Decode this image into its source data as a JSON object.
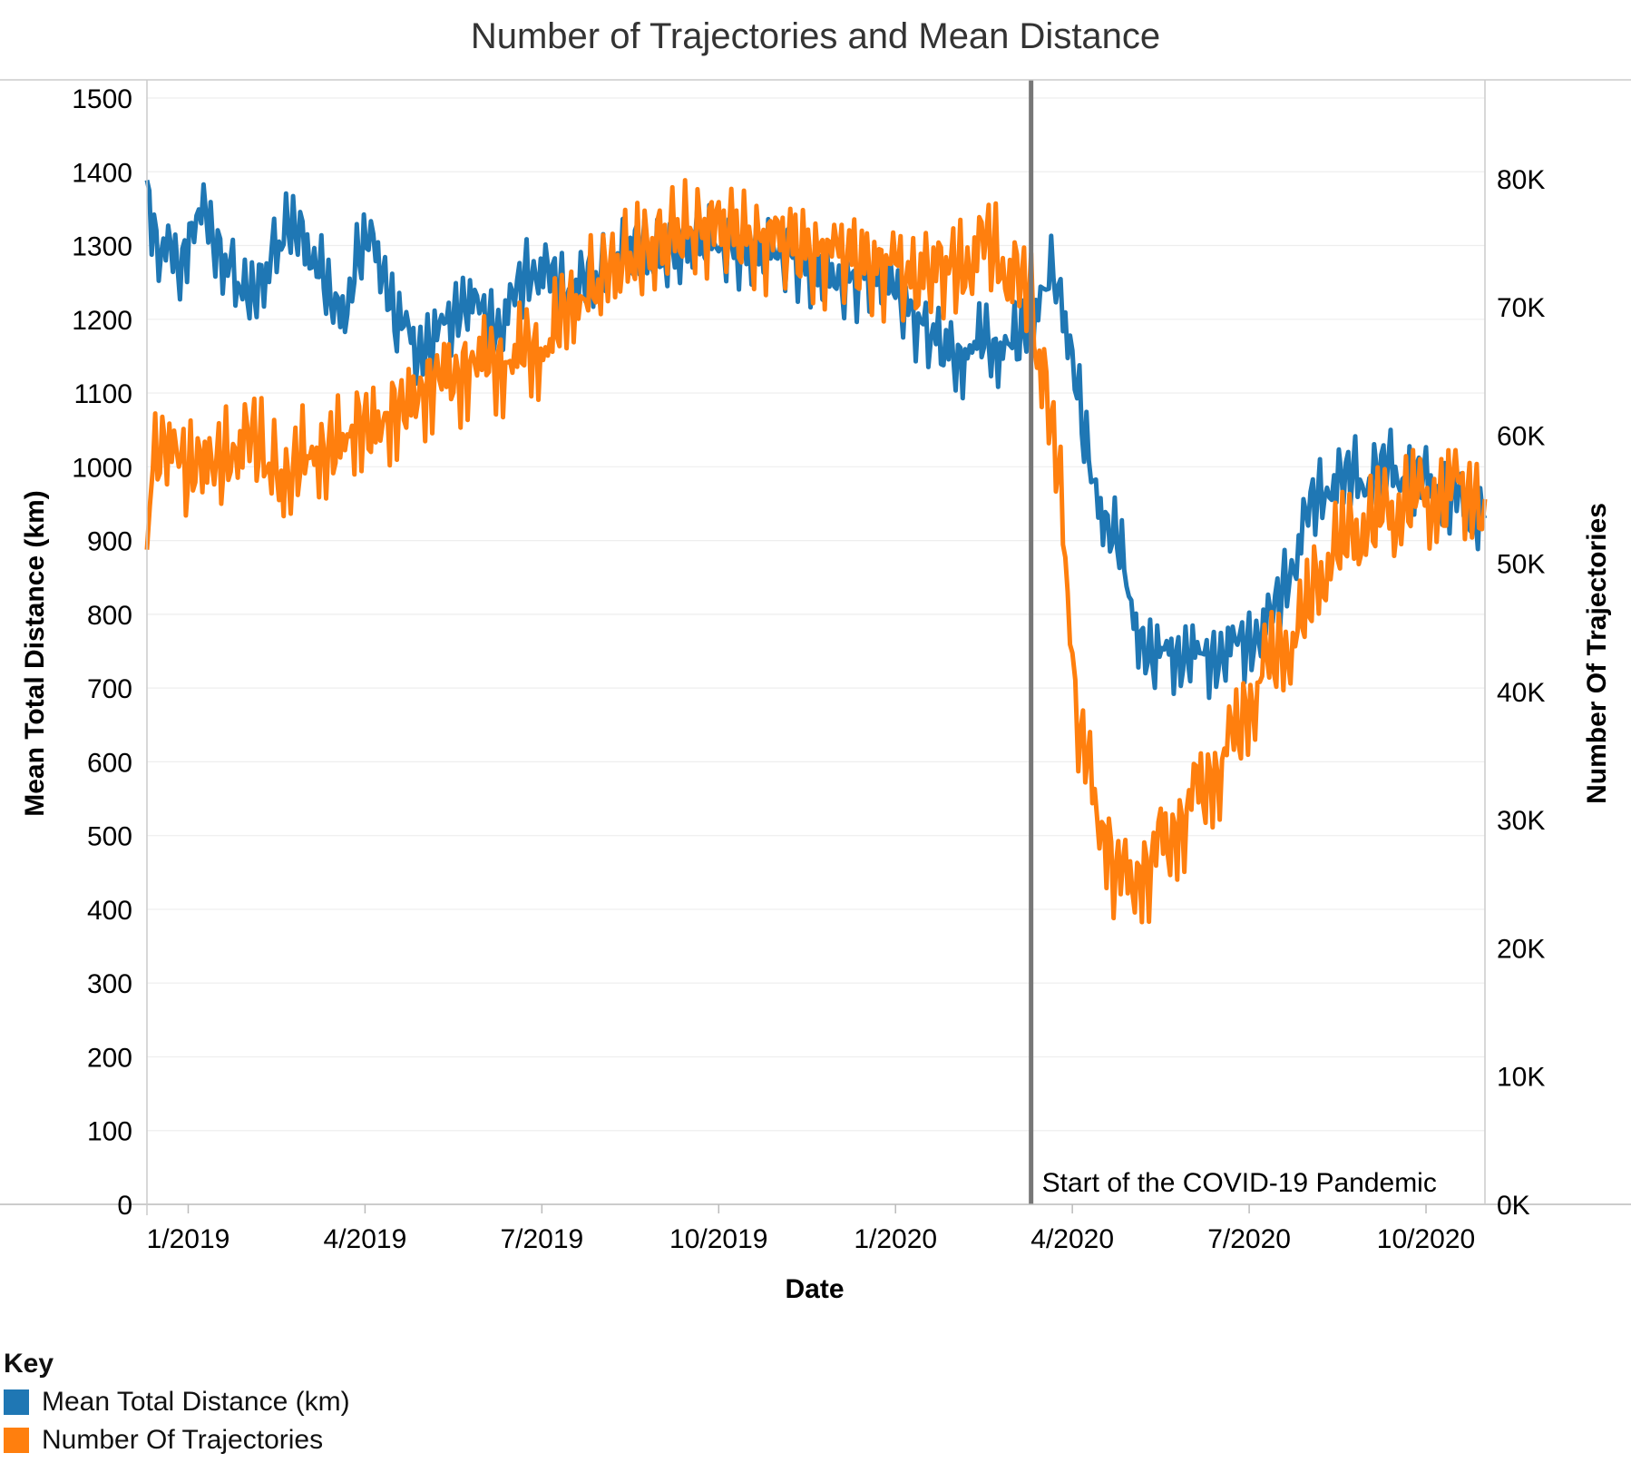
{
  "chart_data": {
    "type": "line",
    "title": "Number of Trajectories and Mean Distance",
    "xlabel": "Date",
    "ylabel_left": "Mean Total Distance (km)",
    "ylabel_right": "Number Of Trajectories",
    "x_tick_labels": [
      "1/2019",
      "4/2019",
      "7/2019",
      "10/2019",
      "1/2020",
      "4/2020",
      "7/2020",
      "10/2020"
    ],
    "y_left_ticks": [
      "0",
      "100",
      "200",
      "300",
      "400",
      "500",
      "600",
      "700",
      "800",
      "900",
      "1000",
      "1100",
      "1200",
      "1300",
      "1400",
      "1500"
    ],
    "y_right_ticks": [
      "0K",
      "10K",
      "20K",
      "30K",
      "40K",
      "50K",
      "60K",
      "70K",
      "80K"
    ],
    "ylim_left": [
      0,
      1500
    ],
    "ylim_right": [
      0,
      87000
    ],
    "x_months_range": [
      -0.7,
      22.0
    ],
    "legend_title": "Key",
    "legend_position": "bottom-left",
    "annotation": {
      "label": "Start of the COVID-19 Pandemic",
      "x_month": 14.3
    },
    "series": [
      {
        "name": "Mean Total Distance (km)",
        "axis": "left",
        "color": "#1f77b4",
        "points": [
          [
            -0.7,
            1370
          ],
          [
            -0.5,
            1300
          ],
          [
            -0.3,
            1280
          ],
          [
            -0.1,
            1270
          ],
          [
            0.1,
            1350
          ],
          [
            0.3,
            1330
          ],
          [
            0.5,
            1290
          ],
          [
            0.8,
            1260
          ],
          [
            1.0,
            1220
          ],
          [
            1.2,
            1240
          ],
          [
            1.5,
            1300
          ],
          [
            1.7,
            1320
          ],
          [
            1.9,
            1310
          ],
          [
            2.1,
            1300
          ],
          [
            2.3,
            1250
          ],
          [
            2.5,
            1200
          ],
          [
            2.7,
            1230
          ],
          [
            2.9,
            1290
          ],
          [
            3.1,
            1300
          ],
          [
            3.3,
            1280
          ],
          [
            3.5,
            1200
          ],
          [
            3.7,
            1180
          ],
          [
            3.9,
            1160
          ],
          [
            4.1,
            1170
          ],
          [
            4.3,
            1180
          ],
          [
            4.5,
            1210
          ],
          [
            4.7,
            1230
          ],
          [
            4.9,
            1210
          ],
          [
            5.1,
            1200
          ],
          [
            5.3,
            1190
          ],
          [
            5.5,
            1220
          ],
          [
            5.7,
            1260
          ],
          [
            5.9,
            1270
          ],
          [
            6.1,
            1260
          ],
          [
            6.3,
            1240
          ],
          [
            6.5,
            1240
          ],
          [
            6.7,
            1250
          ],
          [
            7.0,
            1260
          ],
          [
            7.2,
            1280
          ],
          [
            7.5,
            1300
          ],
          [
            7.7,
            1290
          ],
          [
            8.0,
            1280
          ],
          [
            8.3,
            1290
          ],
          [
            8.6,
            1310
          ],
          [
            9.0,
            1300
          ],
          [
            9.3,
            1290
          ],
          [
            9.6,
            1290
          ],
          [
            10.0,
            1290
          ],
          [
            10.3,
            1280
          ],
          [
            10.6,
            1260
          ],
          [
            11.0,
            1250
          ],
          [
            11.3,
            1250
          ],
          [
            11.6,
            1260
          ],
          [
            12.0,
            1240
          ],
          [
            12.3,
            1200
          ],
          [
            12.6,
            1180
          ],
          [
            12.9,
            1160
          ],
          [
            13.1,
            1140
          ],
          [
            13.3,
            1160
          ],
          [
            13.5,
            1180
          ],
          [
            13.7,
            1150
          ],
          [
            13.9,
            1170
          ],
          [
            14.1,
            1170
          ],
          [
            14.3,
            1200
          ],
          [
            14.5,
            1240
          ],
          [
            14.6,
            1270
          ],
          [
            14.8,
            1230
          ],
          [
            15.0,
            1150
          ],
          [
            15.2,
            1040
          ],
          [
            15.4,
            960
          ],
          [
            15.6,
            920
          ],
          [
            15.8,
            900
          ],
          [
            16.0,
            800
          ],
          [
            16.2,
            760
          ],
          [
            16.4,
            740
          ],
          [
            16.6,
            750
          ],
          [
            16.8,
            740
          ],
          [
            17.0,
            750
          ],
          [
            17.2,
            740
          ],
          [
            17.4,
            740
          ],
          [
            17.6,
            750
          ],
          [
            17.8,
            760
          ],
          [
            18.0,
            760
          ],
          [
            18.2,
            780
          ],
          [
            18.4,
            800
          ],
          [
            18.6,
            840
          ],
          [
            18.8,
            880
          ],
          [
            19.0,
            940
          ],
          [
            19.2,
            960
          ],
          [
            19.4,
            980
          ],
          [
            19.6,
            980
          ],
          [
            19.8,
            990
          ],
          [
            20.0,
            980
          ],
          [
            20.2,
            990
          ],
          [
            20.4,
            1000
          ],
          [
            20.6,
            990
          ],
          [
            20.8,
            980
          ],
          [
            21.0,
            980
          ],
          [
            21.2,
            970
          ],
          [
            21.4,
            960
          ],
          [
            21.6,
            950
          ],
          [
            21.8,
            940
          ],
          [
            22.0,
            930
          ]
        ]
      },
      {
        "name": "Number Of Trajectories",
        "axis": "right",
        "color": "#ff7f0e",
        "points": [
          [
            -0.7,
            50000
          ],
          [
            -0.6,
            58000
          ],
          [
            -0.4,
            60000
          ],
          [
            -0.2,
            58000
          ],
          [
            0.0,
            57000
          ],
          [
            0.2,
            59000
          ],
          [
            0.4,
            57000
          ],
          [
            0.6,
            58000
          ],
          [
            0.8,
            59000
          ],
          [
            1.0,
            60000
          ],
          [
            1.2,
            59000
          ],
          [
            1.5,
            57000
          ],
          [
            1.7,
            56000
          ],
          [
            1.9,
            58000
          ],
          [
            2.1,
            59000
          ],
          [
            2.3,
            58000
          ],
          [
            2.5,
            59000
          ],
          [
            2.7,
            60000
          ],
          [
            2.9,
            61000
          ],
          [
            3.1,
            60000
          ],
          [
            3.3,
            61000
          ],
          [
            3.5,
            62000
          ],
          [
            3.7,
            62000
          ],
          [
            3.9,
            63000
          ],
          [
            4.1,
            64000
          ],
          [
            4.3,
            65000
          ],
          [
            4.5,
            64000
          ],
          [
            4.7,
            65000
          ],
          [
            4.9,
            66000
          ],
          [
            5.1,
            66000
          ],
          [
            5.3,
            65000
          ],
          [
            5.5,
            66000
          ],
          [
            5.7,
            67000
          ],
          [
            5.9,
            66000
          ],
          [
            6.1,
            67000
          ],
          [
            6.3,
            69000
          ],
          [
            6.5,
            70000
          ],
          [
            6.7,
            71000
          ],
          [
            7.0,
            72000
          ],
          [
            7.2,
            73000
          ],
          [
            7.5,
            74000
          ],
          [
            7.7,
            74000
          ],
          [
            8.0,
            75000
          ],
          [
            8.3,
            76000
          ],
          [
            8.6,
            76000
          ],
          [
            9.0,
            76000
          ],
          [
            9.3,
            76000
          ],
          [
            9.6,
            75000
          ],
          [
            10.0,
            75000
          ],
          [
            10.3,
            75000
          ],
          [
            10.6,
            74000
          ],
          [
            11.0,
            74000
          ],
          [
            11.3,
            74000
          ],
          [
            11.6,
            73000
          ],
          [
            12.0,
            73000
          ],
          [
            12.3,
            72000
          ],
          [
            12.6,
            73000
          ],
          [
            12.9,
            73000
          ],
          [
            13.1,
            73000
          ],
          [
            13.3,
            74000
          ],
          [
            13.5,
            75000
          ],
          [
            13.7,
            74000
          ],
          [
            13.9,
            73000
          ],
          [
            14.1,
            72000
          ],
          [
            14.3,
            70000
          ],
          [
            14.4,
            67000
          ],
          [
            14.6,
            62000
          ],
          [
            14.8,
            55000
          ],
          [
            15.0,
            44000
          ],
          [
            15.1,
            37000
          ],
          [
            15.3,
            33000
          ],
          [
            15.5,
            30000
          ],
          [
            15.7,
            26000
          ],
          [
            15.9,
            25000
          ],
          [
            16.1,
            26000
          ],
          [
            16.3,
            26000
          ],
          [
            16.5,
            28000
          ],
          [
            16.7,
            29000
          ],
          [
            16.9,
            30000
          ],
          [
            17.1,
            32000
          ],
          [
            17.3,
            33000
          ],
          [
            17.5,
            34000
          ],
          [
            17.7,
            36000
          ],
          [
            17.9,
            38000
          ],
          [
            18.1,
            40000
          ],
          [
            18.3,
            42000
          ],
          [
            18.5,
            43000
          ],
          [
            18.7,
            44000
          ],
          [
            18.9,
            45000
          ],
          [
            19.1,
            48000
          ],
          [
            19.3,
            50000
          ],
          [
            19.5,
            51000
          ],
          [
            19.7,
            52000
          ],
          [
            19.9,
            53000
          ],
          [
            20.1,
            53000
          ],
          [
            20.3,
            54000
          ],
          [
            20.5,
            54000
          ],
          [
            20.7,
            55000
          ],
          [
            20.9,
            55000
          ],
          [
            21.1,
            55000
          ],
          [
            21.3,
            55000
          ],
          [
            21.5,
            56000
          ],
          [
            21.7,
            56000
          ],
          [
            21.9,
            55000
          ],
          [
            22.0,
            55000
          ]
        ]
      }
    ]
  }
}
